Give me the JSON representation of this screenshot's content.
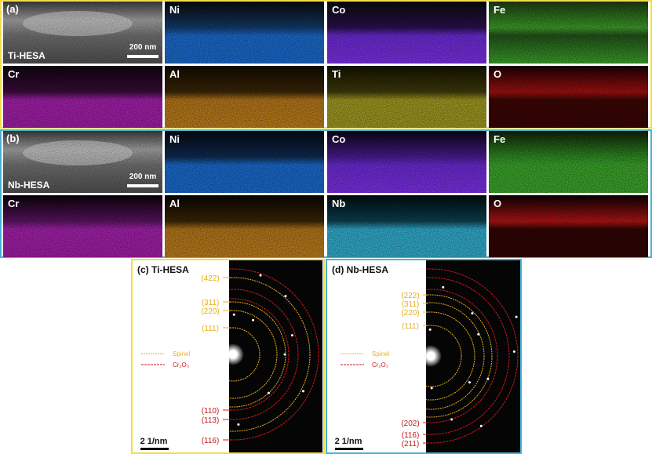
{
  "panels": [
    {
      "label": "(a)",
      "sample": "Ti-HESA",
      "scale_bar": "200 nm",
      "maps": [
        "Ni",
        "Co",
        "Fe",
        "Cr",
        "Al",
        "Ti",
        "O"
      ]
    },
    {
      "label": "(b)",
      "sample": "Nb-HESA",
      "scale_bar": "200 nm",
      "maps": [
        "Ni",
        "Co",
        "Fe",
        "Cr",
        "Al",
        "Nb",
        "O"
      ]
    }
  ],
  "diffraction": [
    {
      "label": "(c) Ti-HESA",
      "spinel_rings": [
        "(422)",
        "(311)",
        "(220)",
        "(111)"
      ],
      "cr2o3_rings": [
        "(110)",
        "(113)",
        "(116)"
      ],
      "legend": [
        "Spinel",
        "Cr₂O₃"
      ],
      "scale_bar": "2 1/nm"
    },
    {
      "label": "(d) Nb-HESA",
      "spinel_rings": [
        "(222)",
        "(311)",
        "(220)",
        "(111)"
      ],
      "cr2o3_rings": [
        "(202)",
        "(116)",
        "(211)"
      ],
      "legend": [
        "Spinel",
        "Cr₂O₃"
      ],
      "scale_bar": "2 1/nm"
    }
  ]
}
